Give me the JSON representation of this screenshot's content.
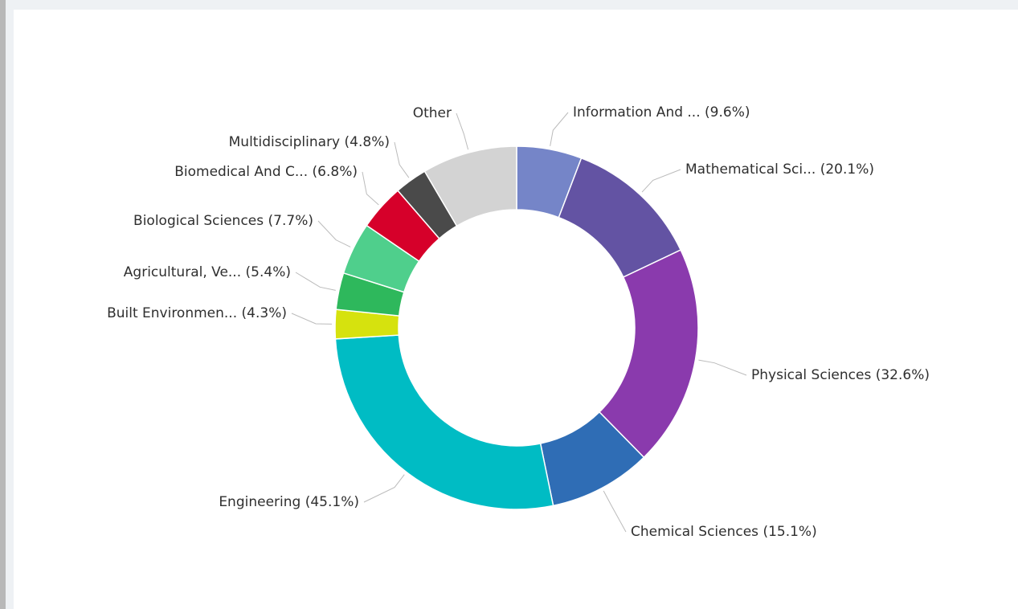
{
  "chart_data": {
    "type": "donut",
    "categories": [
      "Information And ...",
      "Mathematical Sci...",
      "Physical Sciences",
      "Chemical Sciences",
      "Engineering",
      "Built Environmen...",
      "Agricultural, Ve...",
      "Biological Sciences",
      "Biomedical And C...",
      "Multidisciplinary",
      "Other"
    ],
    "values": [
      9.6,
      20.1,
      32.6,
      15.1,
      45.1,
      4.3,
      5.4,
      7.7,
      6.8,
      4.8,
      14
    ],
    "value_labels": [
      "(9.6%)",
      "(20.1%)",
      "(32.6%)",
      "(15.1%)",
      "(45.1%)",
      "(4.3%)",
      "(5.4%)",
      "(7.7%)",
      "(6.8%)",
      "(4.8%)",
      null
    ],
    "colors": [
      "#7585c8",
      "#6353a3",
      "#8a3aad",
      "#2f6db5",
      "#00bcc4",
      "#d6e20e",
      "#2eb85c",
      "#4fcf8c",
      "#d6002a",
      "#4a4a4a",
      "#d3d3d3"
    ]
  }
}
